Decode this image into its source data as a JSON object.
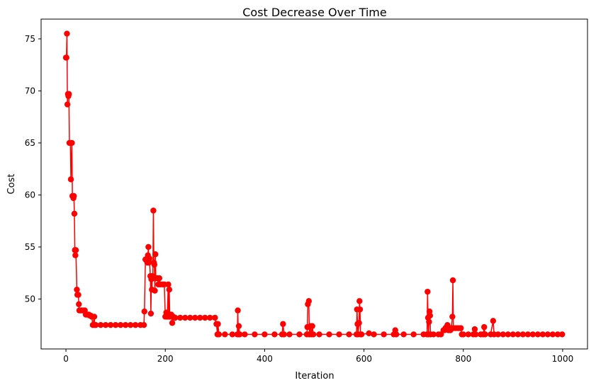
{
  "chart_data": {
    "type": "line",
    "title": "Cost Decrease Over Time",
    "xlabel": "Iteration",
    "ylabel": "Cost",
    "xlim": [
      -50,
      1050
    ],
    "ylim": [
      45.2,
      76.9
    ],
    "x_ticks": [
      0,
      200,
      400,
      600,
      800,
      1000
    ],
    "y_ticks": [
      50,
      55,
      60,
      65,
      70,
      75
    ],
    "grid": false,
    "legend": "none",
    "color": "#ff0000",
    "marker": "circle",
    "series": [
      {
        "points": [
          [
            0,
            73.2
          ],
          [
            1,
            73.2
          ],
          [
            2,
            75.5
          ],
          [
            3,
            68.7
          ],
          [
            4,
            69.7
          ],
          [
            5,
            69.5
          ],
          [
            6,
            69.7
          ],
          [
            7,
            65.0
          ],
          [
            9,
            65.0
          ],
          [
            10,
            61.5
          ],
          [
            12,
            65.0
          ],
          [
            13,
            59.9
          ],
          [
            15,
            59.7
          ],
          [
            16,
            59.9
          ],
          [
            17,
            58.2
          ],
          [
            18,
            54.7
          ],
          [
            19,
            54.2
          ],
          [
            20,
            54.7
          ],
          [
            22,
            50.9
          ],
          [
            23,
            50.4
          ],
          [
            25,
            50.4
          ],
          [
            26,
            49.5
          ],
          [
            27,
            48.9
          ],
          [
            30,
            48.9
          ],
          [
            33,
            48.9
          ],
          [
            36,
            48.9
          ],
          [
            38,
            48.9
          ],
          [
            40,
            48.5
          ],
          [
            43,
            48.5
          ],
          [
            46,
            48.5
          ],
          [
            48,
            48.4
          ],
          [
            50,
            48.4
          ],
          [
            52,
            48.3
          ],
          [
            54,
            47.5
          ],
          [
            57,
            48.3
          ],
          [
            58,
            47.5
          ],
          [
            60,
            47.5
          ],
          [
            70,
            47.5
          ],
          [
            80,
            47.5
          ],
          [
            90,
            47.5
          ],
          [
            100,
            47.5
          ],
          [
            110,
            47.5
          ],
          [
            120,
            47.5
          ],
          [
            130,
            47.5
          ],
          [
            140,
            47.5
          ],
          [
            150,
            47.5
          ],
          [
            157,
            47.5
          ],
          [
            158,
            48.8
          ],
          [
            160,
            53.8
          ],
          [
            162,
            53.7
          ],
          [
            164,
            53.5
          ],
          [
            165,
            54.2
          ],
          [
            166,
            55.0
          ],
          [
            167,
            53.5
          ],
          [
            168,
            53.9
          ],
          [
            170,
            52.2
          ],
          [
            171,
            48.6
          ],
          [
            172,
            51.9
          ],
          [
            173,
            50.9
          ],
          [
            174,
            52.2
          ],
          [
            175,
            52.0
          ],
          [
            176,
            58.5
          ],
          [
            177,
            53.5
          ],
          [
            178,
            53.3
          ],
          [
            179,
            50.8
          ],
          [
            180,
            54.3
          ],
          [
            181,
            52.0
          ],
          [
            183,
            52.0
          ],
          [
            185,
            52.0
          ],
          [
            186,
            51.4
          ],
          [
            188,
            52.0
          ],
          [
            190,
            51.4
          ],
          [
            195,
            51.4
          ],
          [
            198,
            51.4
          ],
          [
            200,
            48.3
          ],
          [
            202,
            48.7
          ],
          [
            204,
            48.3
          ],
          [
            206,
            51.4
          ],
          [
            207,
            48.3
          ],
          [
            208,
            50.9
          ],
          [
            209,
            48.3
          ],
          [
            210,
            48.5
          ],
          [
            212,
            48.5
          ],
          [
            214,
            47.7
          ],
          [
            216,
            48.3
          ],
          [
            220,
            48.2
          ],
          [
            230,
            48.2
          ],
          [
            240,
            48.2
          ],
          [
            250,
            48.2
          ],
          [
            260,
            48.2
          ],
          [
            270,
            48.2
          ],
          [
            280,
            48.2
          ],
          [
            290,
            48.2
          ],
          [
            300,
            48.2
          ],
          [
            303,
            47.6
          ],
          [
            305,
            46.6
          ],
          [
            306,
            47.6
          ],
          [
            308,
            46.6
          ],
          [
            320,
            46.6
          ],
          [
            335,
            46.6
          ],
          [
            345,
            46.6
          ],
          [
            346,
            48.9
          ],
          [
            347,
            46.6
          ],
          [
            348,
            47.4
          ],
          [
            350,
            46.6
          ],
          [
            360,
            46.6
          ],
          [
            380,
            46.6
          ],
          [
            400,
            46.6
          ],
          [
            420,
            46.6
          ],
          [
            435,
            46.6
          ],
          [
            437,
            47.6
          ],
          [
            439,
            46.6
          ],
          [
            450,
            46.6
          ],
          [
            470,
            46.6
          ],
          [
            485,
            46.6
          ],
          [
            486,
            47.3
          ],
          [
            487,
            49.5
          ],
          [
            489,
            49.8
          ],
          [
            490,
            46.6
          ],
          [
            492,
            47.4
          ],
          [
            494,
            46.6
          ],
          [
            496,
            47.4
          ],
          [
            498,
            46.6
          ],
          [
            510,
            46.6
          ],
          [
            530,
            46.6
          ],
          [
            550,
            46.6
          ],
          [
            570,
            46.6
          ],
          [
            585,
            46.6
          ],
          [
            586,
            49.0
          ],
          [
            587,
            47.6
          ],
          [
            588,
            46.6
          ],
          [
            590,
            47.7
          ],
          [
            591,
            49.8
          ],
          [
            592,
            49.0
          ],
          [
            593,
            46.6
          ],
          [
            595,
            46.6
          ],
          [
            610,
            46.7
          ],
          [
            620,
            46.6
          ],
          [
            640,
            46.6
          ],
          [
            660,
            46.6
          ],
          [
            663,
            47.0
          ],
          [
            665,
            46.6
          ],
          [
            680,
            46.6
          ],
          [
            700,
            46.6
          ],
          [
            720,
            46.6
          ],
          [
            727,
            46.6
          ],
          [
            728,
            50.7
          ],
          [
            729,
            48.2
          ],
          [
            730,
            46.6
          ],
          [
            731,
            47.8
          ],
          [
            732,
            48.8
          ],
          [
            733,
            48.4
          ],
          [
            734,
            46.6
          ],
          [
            740,
            46.6
          ],
          [
            750,
            46.6
          ],
          [
            755,
            46.6
          ],
          [
            760,
            47.0
          ],
          [
            762,
            47.0
          ],
          [
            764,
            47.2
          ],
          [
            766,
            47.3
          ],
          [
            768,
            47.5
          ],
          [
            770,
            47.0
          ],
          [
            772,
            47.2
          ],
          [
            774,
            47.0
          ],
          [
            776,
            47.2
          ],
          [
            778,
            48.3
          ],
          [
            779,
            51.8
          ],
          [
            780,
            47.2
          ],
          [
            785,
            47.2
          ],
          [
            790,
            47.2
          ],
          [
            795,
            47.2
          ],
          [
            797,
            46.6
          ],
          [
            800,
            46.6
          ],
          [
            810,
            46.6
          ],
          [
            820,
            46.6
          ],
          [
            823,
            47.1
          ],
          [
            825,
            46.6
          ],
          [
            835,
            46.6
          ],
          [
            840,
            46.6
          ],
          [
            842,
            47.3
          ],
          [
            844,
            46.6
          ],
          [
            855,
            46.6
          ],
          [
            860,
            47.9
          ],
          [
            862,
            46.6
          ],
          [
            870,
            46.6
          ],
          [
            880,
            46.6
          ],
          [
            890,
            46.6
          ],
          [
            900,
            46.6
          ],
          [
            910,
            46.6
          ],
          [
            920,
            46.6
          ],
          [
            930,
            46.6
          ],
          [
            940,
            46.6
          ],
          [
            950,
            46.6
          ],
          [
            960,
            46.6
          ],
          [
            970,
            46.6
          ],
          [
            980,
            46.6
          ],
          [
            990,
            46.6
          ],
          [
            999,
            46.6
          ]
        ]
      }
    ]
  }
}
